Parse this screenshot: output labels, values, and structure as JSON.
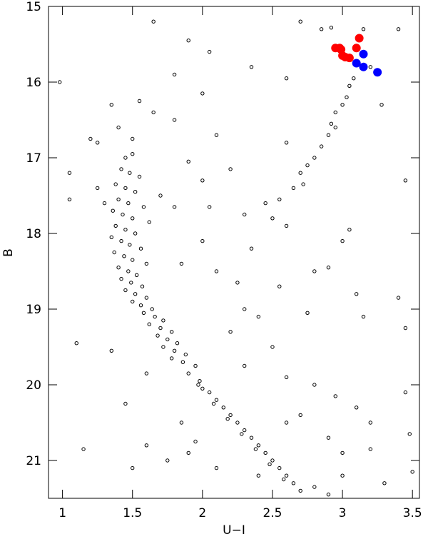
{
  "chart_data": {
    "type": "scatter",
    "x_label": "U−I",
    "y_label": "B",
    "xlim": [
      0.9,
      3.55
    ],
    "ylim": [
      21.5,
      15
    ],
    "xticks": [
      1,
      1.5,
      2,
      2.5,
      3,
      3.5
    ],
    "yticks": [
      15,
      16,
      17,
      18,
      19,
      20,
      21
    ],
    "series": [
      {
        "color": "#000000",
        "marker": "open",
        "x": [
          1.45,
          1.5,
          1.42,
          1.48,
          1.55,
          1.38,
          1.45,
          1.52,
          1.4,
          1.47,
          1.58,
          1.36,
          1.43,
          1.5,
          1.62,
          1.38,
          1.45,
          1.52,
          1.35,
          1.42,
          1.48,
          1.56,
          1.37,
          1.44,
          1.5,
          1.6,
          1.4,
          1.47,
          1.53,
          1.42,
          1.49,
          1.57,
          1.45,
          1.52,
          1.6,
          1.5,
          1.56,
          1.64,
          1.58,
          1.66,
          1.72,
          1.62,
          1.7,
          1.78,
          1.68,
          1.75,
          1.82,
          1.72,
          1.8,
          1.88,
          1.78,
          1.86,
          1.95,
          1.9,
          1.98,
          2.0,
          2.05,
          1.97,
          2.1,
          2.15,
          2.08,
          2.2,
          2.25,
          2.18,
          2.3,
          2.35,
          2.28,
          2.4,
          2.45,
          2.38,
          2.5,
          2.55,
          2.48,
          2.6,
          2.65,
          2.58,
          2.7,
          2.8,
          2.9,
          1.3,
          1.25,
          1.35,
          1.55,
          1.65,
          1.8,
          2.0,
          2.1,
          1.9,
          2.0,
          2.2,
          1.7,
          1.8,
          2.05,
          2.3,
          2.5,
          2.6,
          2.35,
          2.0,
          1.85,
          2.1,
          2.25,
          2.55,
          2.8,
          3.0,
          3.05,
          2.9,
          3.1,
          3.15,
          2.75,
          2.4,
          2.2,
          2.5,
          2.3,
          2.6,
          2.8,
          2.95,
          3.1,
          2.7,
          2.9,
          3.0,
          3.2,
          2.4,
          2.1,
          1.9,
          1.75,
          1.6,
          1.5,
          1.15,
          1.1,
          1.05,
          1.05,
          0.98,
          1.35,
          1.45,
          1.6,
          1.85,
          1.95,
          2.3,
          2.6,
          3.4,
          3.45,
          3.45,
          3.48,
          3.5,
          3.3,
          3.0,
          3.2,
          2.7,
          2.75,
          2.72,
          2.8,
          2.85,
          2.9,
          2.92,
          2.95,
          3.0,
          3.03,
          3.05,
          2.95,
          2.65,
          2.55,
          2.45,
          3.08,
          3.15,
          3.2,
          3.28,
          3.4,
          3.45,
          2.85,
          2.92,
          2.7,
          2.6,
          2.35,
          2.6,
          1.65,
          1.9,
          2.05,
          1.8,
          1.4,
          1.5,
          1.2,
          1.25
        ],
        "values": [
          17.0,
          16.95,
          17.15,
          17.2,
          17.25,
          17.35,
          17.4,
          17.45,
          17.55,
          17.6,
          17.65,
          17.7,
          17.75,
          17.8,
          17.85,
          17.9,
          17.95,
          18.0,
          18.05,
          18.1,
          18.15,
          18.2,
          18.25,
          18.3,
          18.35,
          18.4,
          18.45,
          18.5,
          18.55,
          18.6,
          18.65,
          18.7,
          18.75,
          18.8,
          18.85,
          18.9,
          18.95,
          19.0,
          19.05,
          19.1,
          19.15,
          19.2,
          19.25,
          19.3,
          19.35,
          19.4,
          19.45,
          19.5,
          19.55,
          19.6,
          19.65,
          19.7,
          19.75,
          19.85,
          19.95,
          20.05,
          20.1,
          20.0,
          20.2,
          20.3,
          20.25,
          20.4,
          20.5,
          20.45,
          20.6,
          20.7,
          20.65,
          20.8,
          20.9,
          20.85,
          21.0,
          21.1,
          21.05,
          21.2,
          21.3,
          21.25,
          21.4,
          21.35,
          21.45,
          17.6,
          16.8,
          16.3,
          16.25,
          16.4,
          16.5,
          16.15,
          16.7,
          17.05,
          17.3,
          17.15,
          17.5,
          17.65,
          17.65,
          17.75,
          17.8,
          17.9,
          18.2,
          18.1,
          18.4,
          18.5,
          18.65,
          18.7,
          18.5,
          18.1,
          17.95,
          18.45,
          18.8,
          19.1,
          19.05,
          19.1,
          19.3,
          19.5,
          19.75,
          19.9,
          20.0,
          20.15,
          20.3,
          20.4,
          20.7,
          20.9,
          20.85,
          21.2,
          21.1,
          20.9,
          21.0,
          20.8,
          21.1,
          20.85,
          19.45,
          17.2,
          17.55,
          16.0,
          19.55,
          20.25,
          19.85,
          20.5,
          20.75,
          19.0,
          20.5,
          18.85,
          19.25,
          20.1,
          20.65,
          21.15,
          21.3,
          21.2,
          20.5,
          17.2,
          17.1,
          17.35,
          17.0,
          16.85,
          16.7,
          16.55,
          16.4,
          16.3,
          16.2,
          16.05,
          16.6,
          17.4,
          17.55,
          17.6,
          15.95,
          15.3,
          15.8,
          16.3,
          15.3,
          17.3,
          15.3,
          15.28,
          15.2,
          15.95,
          15.8,
          16.8,
          15.2,
          15.45,
          15.6,
          15.9,
          16.6,
          16.75,
          16.75,
          17.4
        ]
      },
      {
        "color": "#ff0000",
        "marker": "filled",
        "x": [
          2.95,
          2.98,
          3.0,
          3.02,
          3.05,
          3.1,
          3.12,
          2.99
        ],
        "values": [
          15.55,
          15.55,
          15.65,
          15.67,
          15.68,
          15.55,
          15.42,
          15.57
        ]
      },
      {
        "color": "#0000ff",
        "marker": "filled",
        "x": [
          3.1,
          3.15,
          3.15,
          3.25
        ],
        "values": [
          15.75,
          15.63,
          15.8,
          15.87
        ]
      }
    ]
  }
}
